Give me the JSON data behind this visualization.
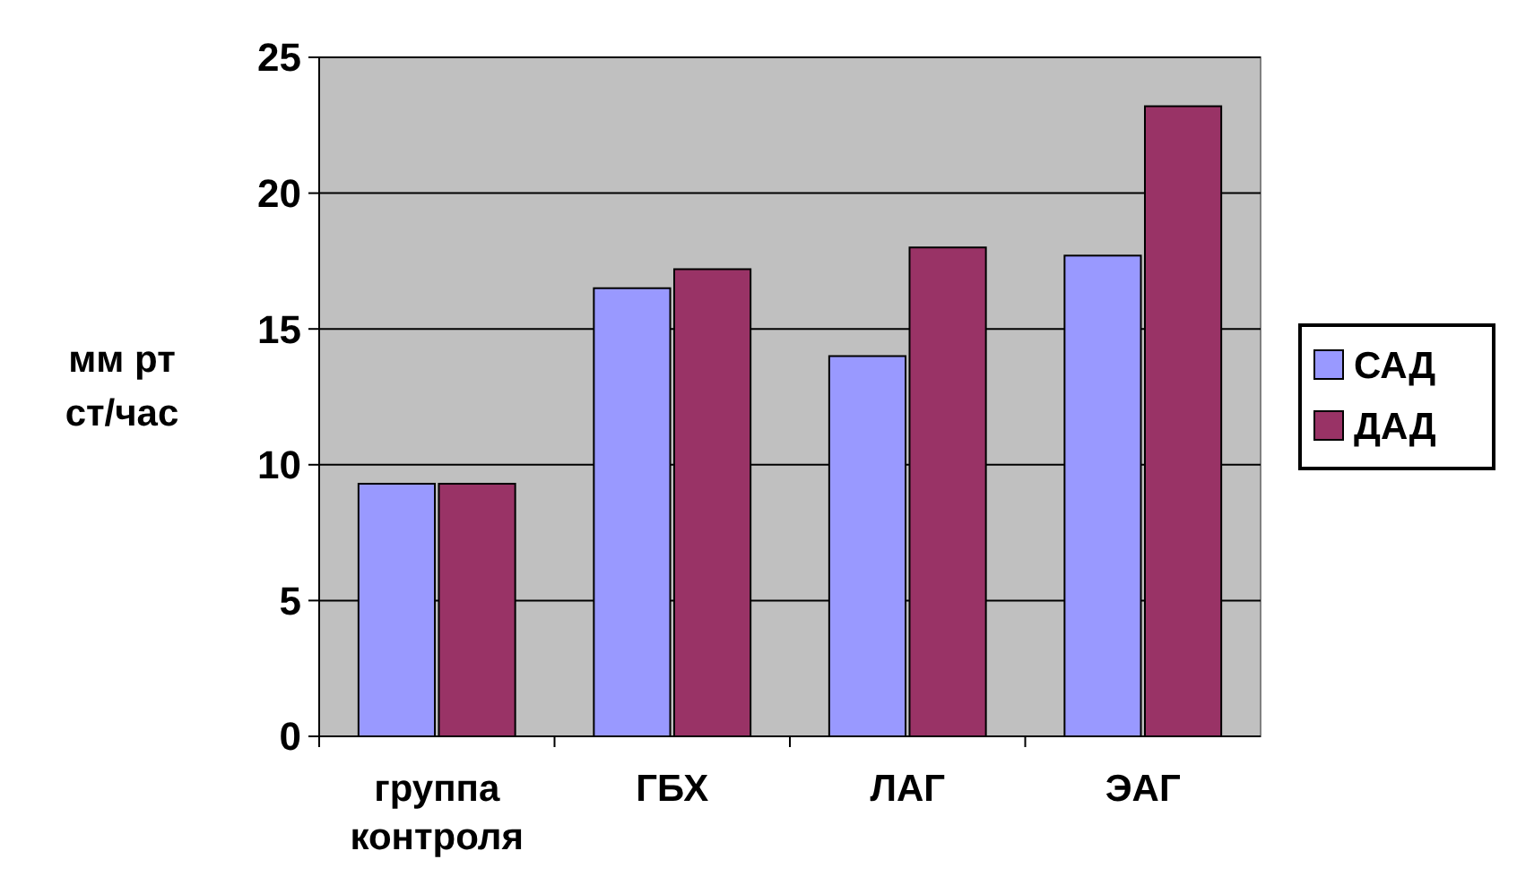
{
  "chart_data": {
    "type": "bar",
    "ylabel": "мм рт ст/час",
    "categories": [
      "группа контроля",
      "ГБХ",
      "ЛАГ",
      "ЭАГ"
    ],
    "series": [
      {
        "name": "САД",
        "color": "#9999ff",
        "values": [
          9.3,
          16.5,
          14,
          17.7
        ]
      },
      {
        "name": "ДАД",
        "color": "#993366",
        "values": [
          9.3,
          17.2,
          18,
          23.2
        ]
      }
    ],
    "ylim": [
      0,
      25
    ],
    "yticks": [
      0,
      5,
      10,
      15,
      20,
      25
    ],
    "grid": "y",
    "legend": "right"
  }
}
